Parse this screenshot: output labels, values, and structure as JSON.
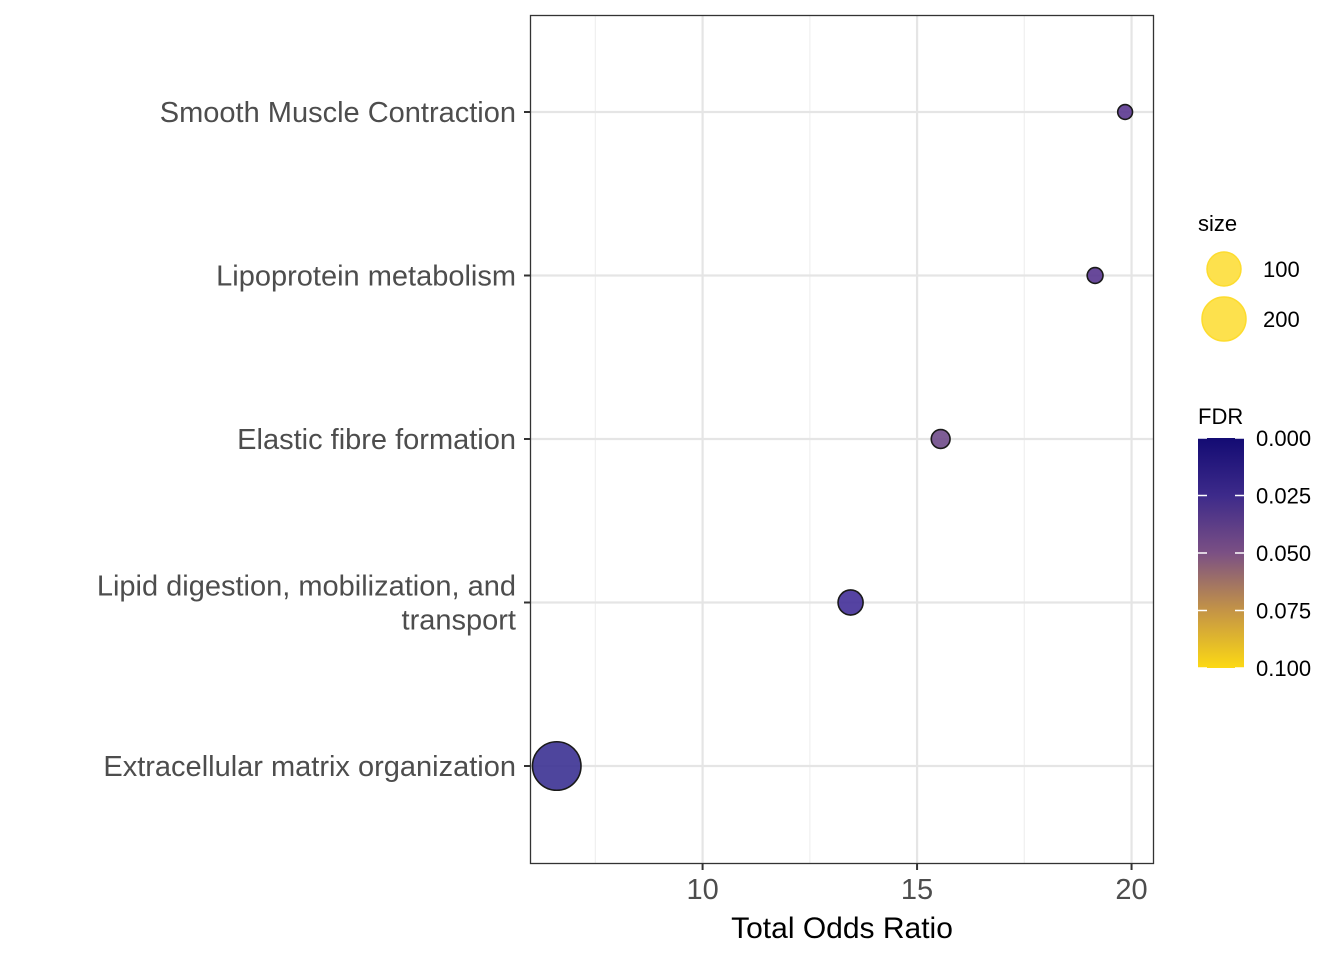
{
  "chart_data": {
    "type": "scatter",
    "xlabel": "Total Odds Ratio",
    "ylabel": "",
    "xlim": [
      6.0,
      20.5
    ],
    "x_ticks": [
      "10",
      "15",
      "20"
    ],
    "x_tick_values": [
      10,
      15,
      20
    ],
    "categories": [
      "Extracellular matrix organization",
      "Lipid digestion, mobilization, and transport",
      "Elastic fibre formation",
      "Lipoprotein metabolism",
      "Smooth Muscle Contraction"
    ],
    "category_lines": [
      [
        "Extracellular matrix organization"
      ],
      [
        "Lipid digestion, mobilization, and",
        "transport"
      ],
      [
        "Elastic fibre formation"
      ],
      [
        "Lipoprotein metabolism"
      ],
      [
        "Smooth Muscle Contraction"
      ]
    ],
    "points": [
      {
        "category": "Extracellular matrix organization",
        "x": 6.6,
        "size": 300,
        "fdr": 0.004,
        "color": "#3f3595"
      },
      {
        "category": "Lipid digestion, mobilization, and transport",
        "x": 13.45,
        "size": 80,
        "fdr": 0.006,
        "color": "#47339a"
      },
      {
        "category": "Elastic fibre formation",
        "x": 15.55,
        "size": 45,
        "fdr": 0.03,
        "color": "#724f8c"
      },
      {
        "category": "Lipoprotein metabolism",
        "x": 19.15,
        "size": 32,
        "fdr": 0.02,
        "color": "#5b3a91"
      },
      {
        "category": "Smooth Muscle Contraction",
        "x": 19.85,
        "size": 28,
        "fdr": 0.022,
        "color": "#5e3c92"
      }
    ],
    "grid": true,
    "legend_position": "right",
    "size_legend": {
      "title": "size",
      "values": [
        100,
        200
      ],
      "labels": [
        "100",
        "200"
      ],
      "color": "#fddc2e"
    },
    "color_legend": {
      "title": "FDR",
      "ticks": [
        "0.000",
        "0.025",
        "0.050",
        "0.075",
        "0.100"
      ],
      "tick_values": [
        0,
        0.025,
        0.05,
        0.075,
        0.1
      ],
      "low_color": "#130b73",
      "mid_color": "#7b5084",
      "high_color": "#fcd914"
    }
  }
}
